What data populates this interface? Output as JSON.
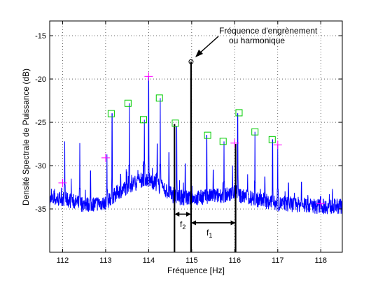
{
  "chart_data": {
    "type": "line",
    "title": "",
    "xlabel": "Fréquence [Hz]",
    "ylabel": "Densité Spectrale de Puissance (dB)",
    "xlim": [
      111.7,
      118.5
    ],
    "ylim": [
      -40,
      -13.3
    ],
    "xticks": [
      112,
      113,
      114,
      115,
      116,
      117,
      118
    ],
    "yticks": [
      -35,
      -30,
      -25,
      -20,
      -15
    ],
    "grid": true,
    "series": [
      {
        "color": "#0000ff",
        "baseline_points": [
          [
            111.7,
            -34.0
          ],
          [
            112.0,
            -33.8
          ],
          [
            112.5,
            -34.5
          ],
          [
            113.0,
            -34.3
          ],
          [
            113.3,
            -33.0
          ],
          [
            113.6,
            -32.2
          ],
          [
            113.9,
            -31.5
          ],
          [
            114.0,
            -31.6
          ],
          [
            114.3,
            -32.5
          ],
          [
            114.6,
            -33.6
          ],
          [
            115.0,
            -33.8
          ],
          [
            115.5,
            -33.5
          ],
          [
            116.0,
            -33.3
          ],
          [
            116.5,
            -33.9
          ],
          [
            117.0,
            -34.4
          ],
          [
            117.5,
            -34.5
          ],
          [
            118.0,
            -34.7
          ],
          [
            118.5,
            -34.7
          ]
        ],
        "peaks": [
          [
            111.93,
            -33.5
          ],
          [
            112.05,
            -27.2
          ],
          [
            112.2,
            -31.5
          ],
          [
            112.4,
            -27.4
          ],
          [
            112.65,
            -30.6
          ],
          [
            113.03,
            -28.7
          ],
          [
            113.15,
            -24.0
          ],
          [
            113.35,
            -31.0
          ],
          [
            113.55,
            -22.8
          ],
          [
            113.75,
            -30.5
          ],
          [
            113.9,
            -24.7
          ],
          [
            114.0,
            -19.7
          ],
          [
            114.2,
            -27.5
          ],
          [
            114.27,
            -22.2
          ],
          [
            114.47,
            -28.5
          ],
          [
            114.65,
            -25.5
          ],
          [
            114.85,
            -29.8
          ],
          [
            115.35,
            -26.5
          ],
          [
            115.5,
            -30.5
          ],
          [
            115.75,
            -27.2
          ],
          [
            115.95,
            -30.0
          ],
          [
            116.07,
            -24.0
          ],
          [
            116.3,
            -31.0
          ],
          [
            116.47,
            -26.1
          ],
          [
            116.7,
            -31.3
          ],
          [
            116.88,
            -27.0
          ],
          [
            117.0,
            -27.6
          ],
          [
            117.25,
            -32.0
          ],
          [
            117.55,
            -31.9
          ],
          [
            117.95,
            -34.0
          ],
          [
            118.0,
            -33.5
          ],
          [
            118.2,
            -33.3
          ]
        ],
        "seed": 7,
        "noise_db": 0.9
      }
    ],
    "highlight_lines": [
      {
        "x": 114.6,
        "y": -25.2,
        "color": "#000000"
      },
      {
        "x": 114.985,
        "y": -18.0,
        "color": "#000000"
      },
      {
        "x": 116.02,
        "y": -27.5,
        "color": "#000000"
      }
    ],
    "markers_square": {
      "color": "#00cc00",
      "points": [
        [
          113.13,
          -24.0
        ],
        [
          113.52,
          -22.8
        ],
        [
          113.88,
          -24.7
        ],
        [
          114.25,
          -22.2
        ],
        [
          114.62,
          -25.1
        ],
        [
          115.37,
          -26.5
        ],
        [
          115.73,
          -27.2
        ],
        [
          116.1,
          -23.9
        ],
        [
          116.47,
          -26.1
        ],
        [
          116.87,
          -27.0
        ]
      ]
    },
    "markers_plus": {
      "color": "#ff00ff",
      "points": [
        [
          112.0,
          -32.0
        ],
        [
          113.0,
          -29.1
        ],
        [
          114.0,
          -19.7
        ],
        [
          116.0,
          -27.4
        ],
        [
          117.0,
          -27.6
        ],
        [
          118.0,
          -34.4
        ]
      ]
    },
    "marker_circle": {
      "x": 114.985,
      "y": -18.0
    },
    "annotations": {
      "gear_mesh_line1": "Fréquence d'engrènement",
      "gear_mesh_line2": "ou harmonique",
      "f2": "f",
      "f2_sub": "2",
      "f1": "f",
      "f1_sub": "1"
    },
    "spans": {
      "f2": {
        "from": 114.6,
        "to": 114.985,
        "y": -35.6
      },
      "f1": {
        "from": 114.985,
        "to": 116.02,
        "y": -36.6
      }
    }
  }
}
